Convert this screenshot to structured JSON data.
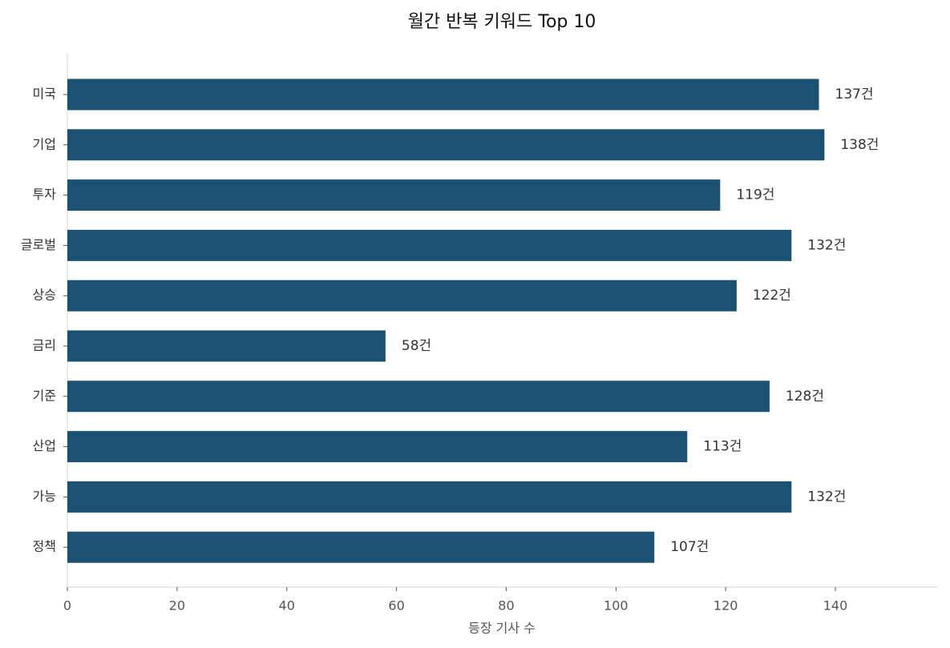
{
  "chart_data": {
    "type": "barh",
    "title": "월간 반복 키워드 Top 10",
    "categories": [
      "미국",
      "기업",
      "투자",
      "글로벌",
      "상승",
      "금리",
      "기준",
      "산업",
      "가능",
      "정책"
    ],
    "values": [
      137,
      138,
      119,
      132,
      122,
      58,
      128,
      113,
      132,
      107
    ],
    "value_labels": [
      "137건",
      "138건",
      "119건",
      "132건",
      "122건",
      "58건",
      "128건",
      "113건",
      "132건",
      "107건"
    ],
    "color": "#1b5273",
    "xlabel": "등장 기사 수",
    "xlim": [
      0,
      158.7
    ],
    "xticks": [
      0,
      20,
      40,
      60,
      80,
      100,
      120,
      140
    ],
    "grid": false
  }
}
